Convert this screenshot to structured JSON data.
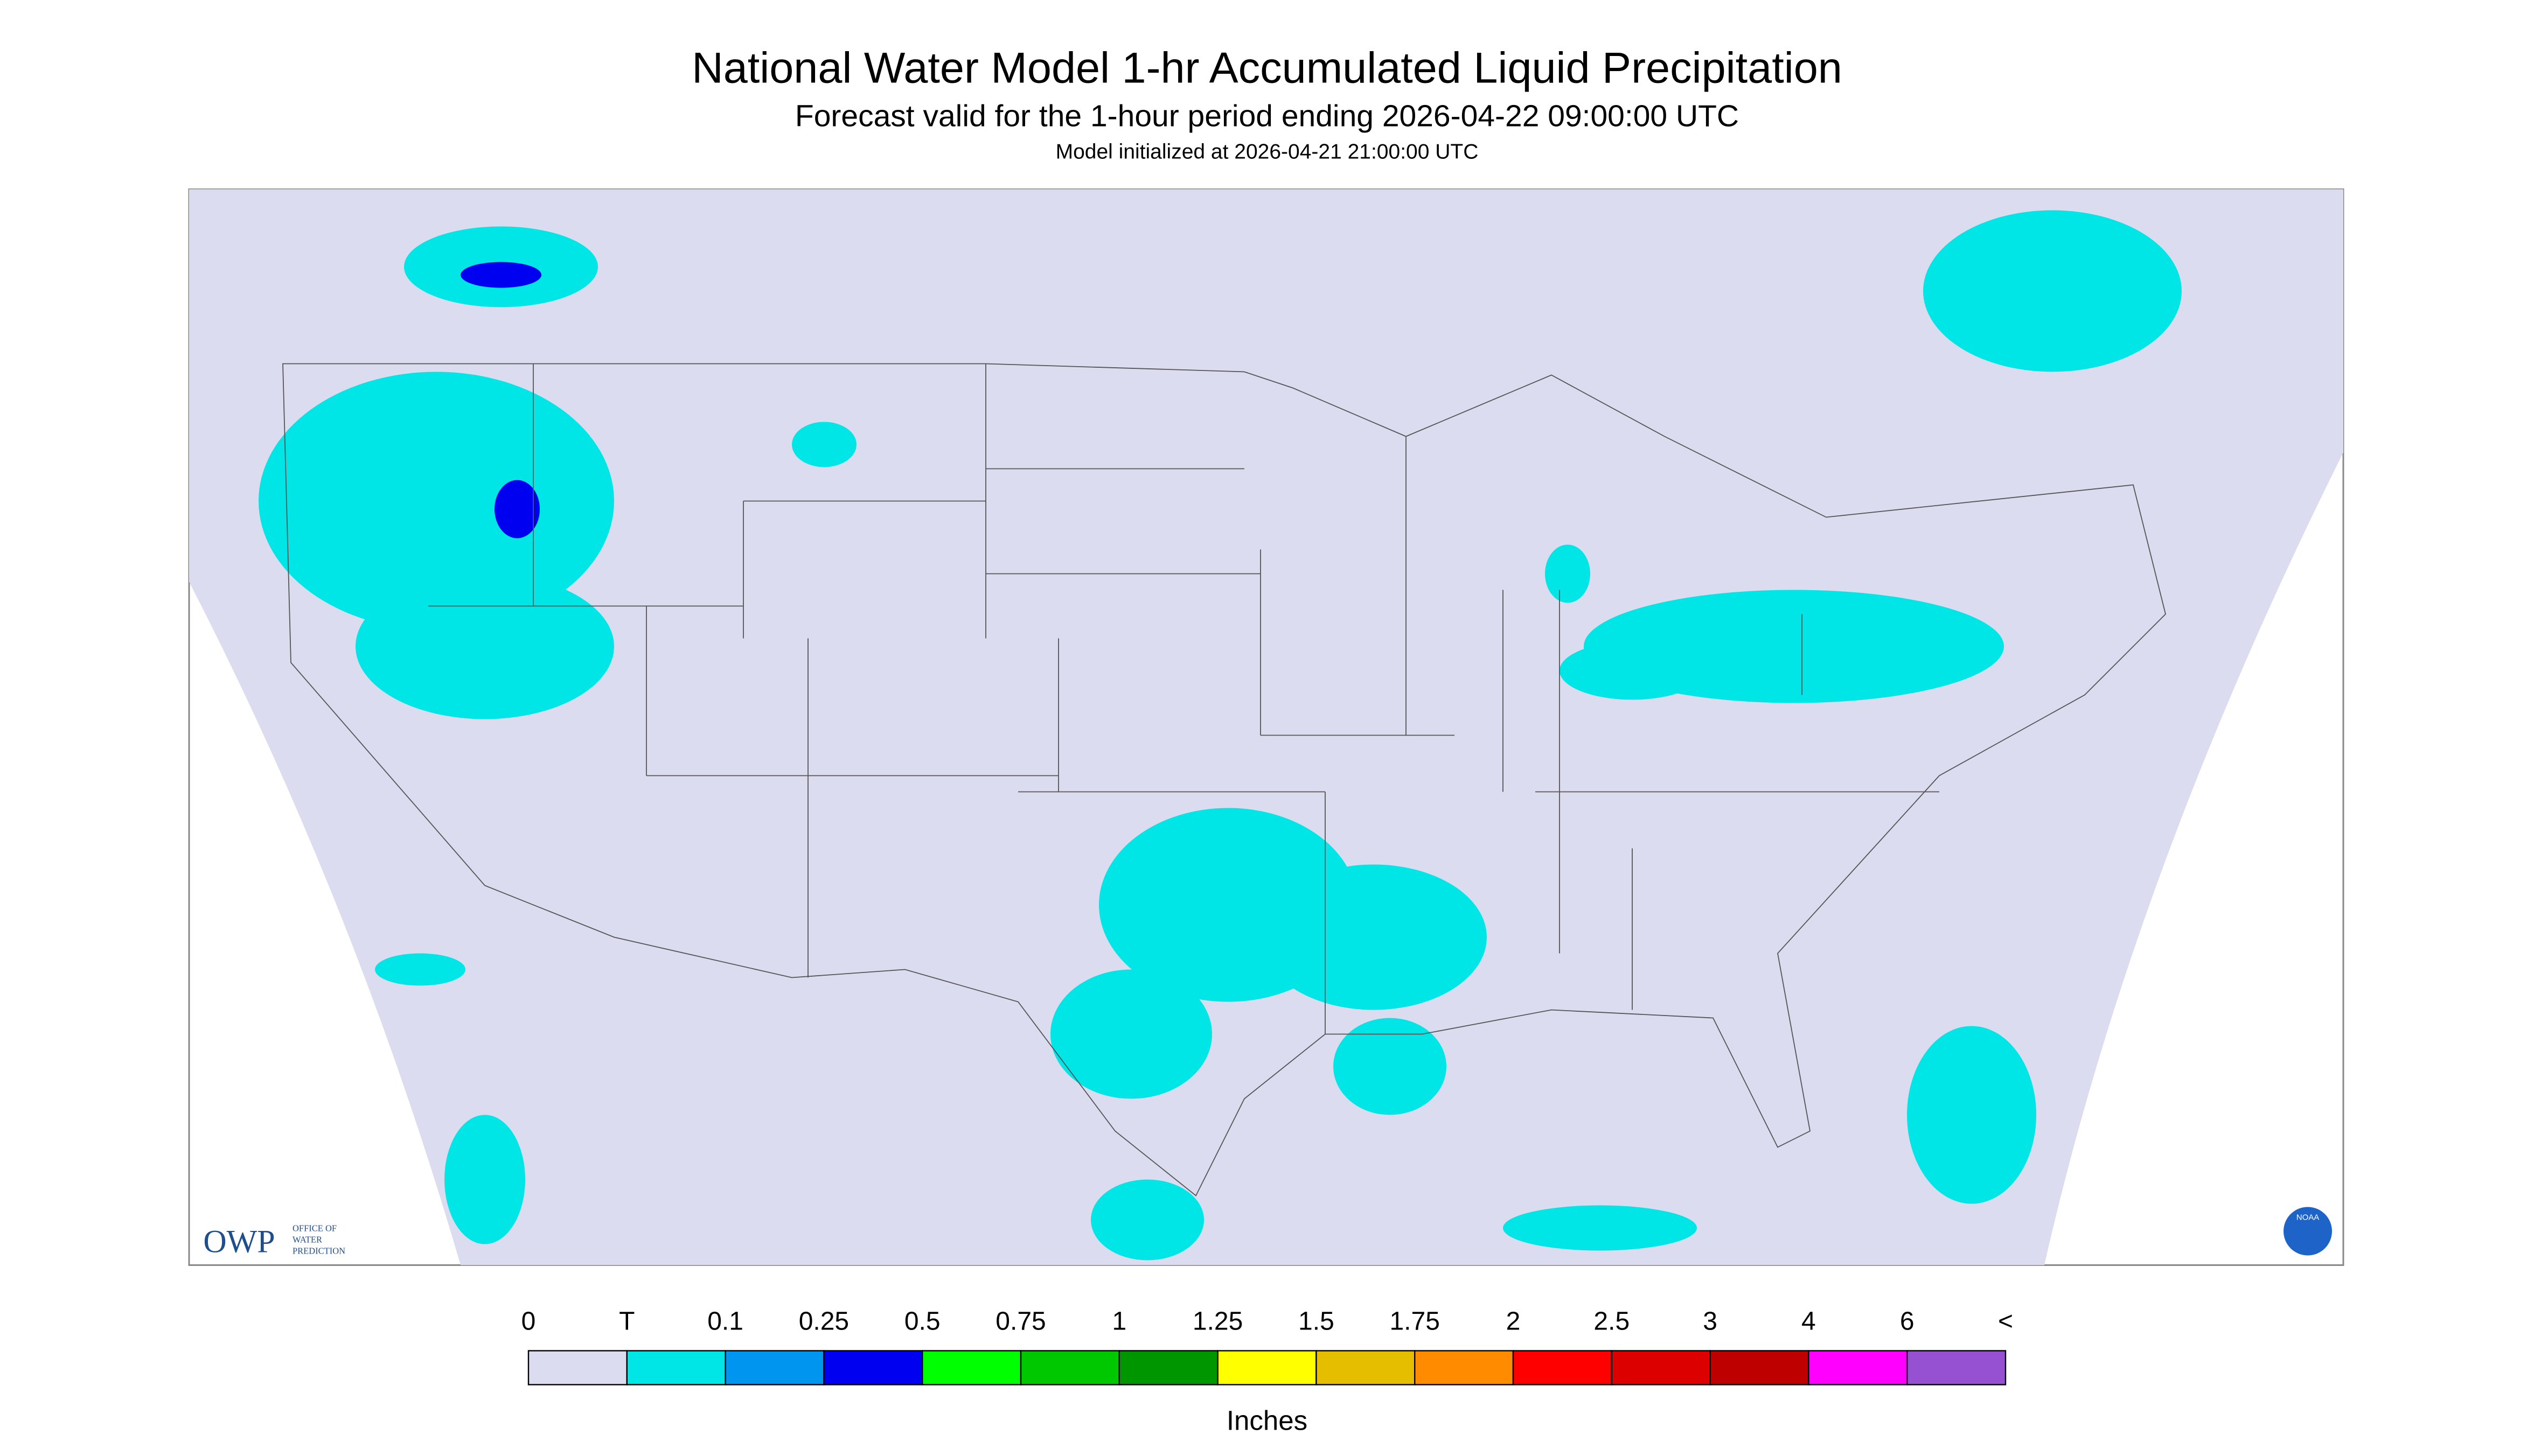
{
  "header": {
    "title": "National Water Model 1-hr Accumulated Liquid Precipitation",
    "subtitle": "Forecast valid for the 1-hour period ending 2026-04-22 09:00:00 UTC",
    "note": "Model initialized at 2026-04-21 21:00:00 UTC"
  },
  "logos": {
    "owp": "OWP",
    "owp_text": [
      "OFFICE OF",
      "WATER",
      "PREDICTION"
    ],
    "noaa": "NOAA"
  },
  "legend": {
    "labels": [
      "0",
      "T",
      "0.1",
      "0.25",
      "0.5",
      "0.75",
      "1",
      "1.25",
      "1.5",
      "1.75",
      "2",
      "2.5",
      "3",
      "4",
      "6",
      "<"
    ],
    "colors": [
      "#dcdcf0",
      "#00e6e6",
      "#0096f0",
      "#0000f0",
      "#00ff00",
      "#00c800",
      "#009600",
      "#ffff00",
      "#e6be00",
      "#ff8c00",
      "#ff0000",
      "#dc0000",
      "#be0000",
      "#ff00ff",
      "#9650d2"
    ],
    "units": "Inches"
  }
}
